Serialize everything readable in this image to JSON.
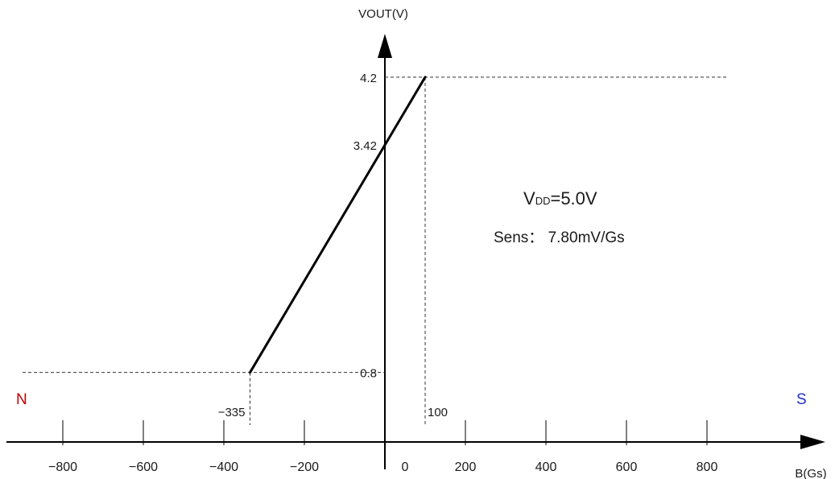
{
  "chart_data": {
    "type": "line",
    "xlabel": "B(Gs)",
    "ylabel": "VOUT(V)",
    "xlim": [
      -1000,
      1150
    ],
    "ylim": [
      0,
      5.7
    ],
    "x_ticks": [
      -800,
      -600,
      -400,
      -200,
      0,
      200,
      400,
      600,
      800
    ],
    "x_tick_labels": [
      "−800",
      "−600",
      "−400",
      "−200",
      "0",
      "200",
      "400",
      "600",
      "800"
    ],
    "series": [
      {
        "x": [
          -335,
          100
        ],
        "y": [
          0.8,
          4.2
        ]
      }
    ],
    "y_markers": [
      {
        "value": 0.8,
        "label": "0.8"
      },
      {
        "value": 3.42,
        "label": "3.42"
      },
      {
        "value": 4.2,
        "label": "4.2"
      }
    ],
    "x_markers": [
      {
        "value": -335,
        "label": "−335"
      },
      {
        "value": 100,
        "label": "100"
      }
    ],
    "pole_labels": {
      "north": {
        "text": "N",
        "color": "#c00000"
      },
      "south": {
        "text": "S",
        "color": "#1f2fd0"
      }
    },
    "annotations": {
      "vdd_prefix": "V",
      "vdd_sub": "DD",
      "vdd_value": "=5.0V",
      "sens": "Sens： 7.80mV/Gs"
    },
    "grid": false
  }
}
